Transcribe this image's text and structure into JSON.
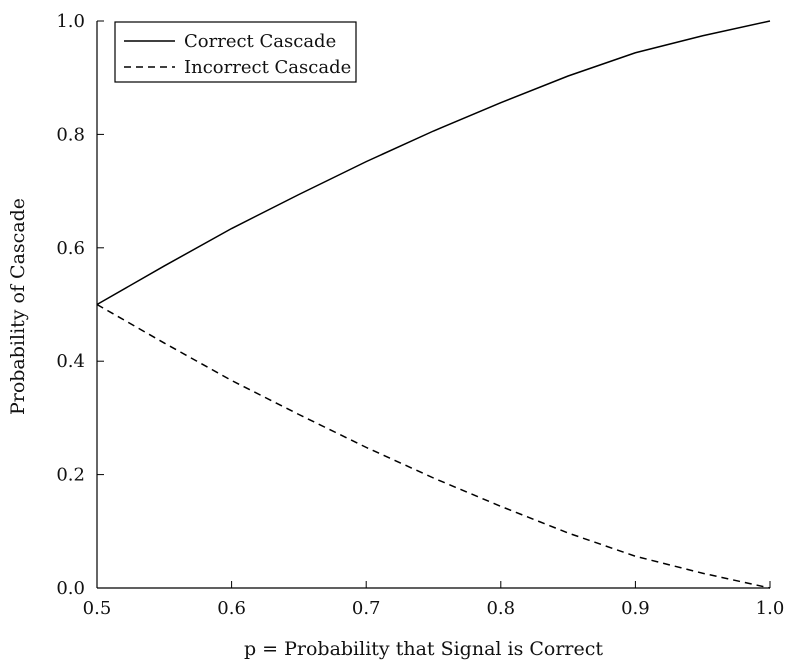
{
  "chart_data": {
    "type": "line",
    "title": "",
    "xlabel": "p = Probability that Signal is Correct",
    "ylabel": "Probability of Cascade",
    "xlim": [
      0.5,
      1.0
    ],
    "ylim": [
      0.0,
      1.0
    ],
    "x_ticks": [
      "0.5",
      "0.6",
      "0.7",
      "0.8",
      "0.9",
      "1.0"
    ],
    "y_ticks": [
      "0.0",
      "0.2",
      "0.4",
      "0.6",
      "0.8",
      "1.0"
    ],
    "grid": false,
    "legend_position": "top-left",
    "x": [
      0.5,
      0.55,
      0.6,
      0.65,
      0.7,
      0.75,
      0.8,
      0.85,
      0.9,
      0.95,
      1.0
    ],
    "series": [
      {
        "name": "Correct Cascade",
        "line_style": "solid",
        "color": "#000000",
        "values": [
          0.5,
          0.568,
          0.634,
          0.694,
          0.752,
          0.806,
          0.856,
          0.903,
          0.944,
          0.974,
          1.0
        ]
      },
      {
        "name": "Incorrect Cascade",
        "line_style": "dashed",
        "color": "#000000",
        "values": [
          0.5,
          0.432,
          0.366,
          0.306,
          0.248,
          0.194,
          0.144,
          0.097,
          0.056,
          0.026,
          0.0
        ]
      }
    ]
  }
}
